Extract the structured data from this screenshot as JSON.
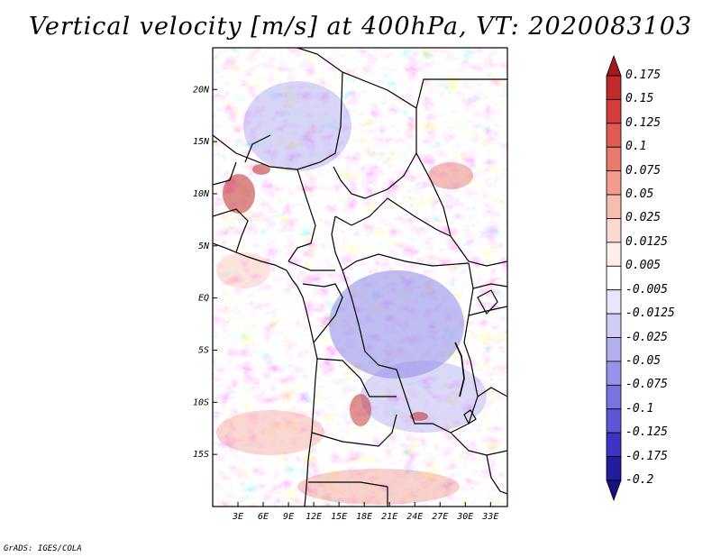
{
  "title": "Vertical velocity [m/s] at 400hPa, VT: 2020083103",
  "credit": "GrADS: IGES/COLA",
  "map": {
    "lon_range": [
      0,
      35
    ],
    "lat_range": [
      -20,
      24
    ],
    "x_ticks": [
      "3E",
      "6E",
      "9E",
      "12E",
      "15E",
      "18E",
      "21E",
      "24E",
      "27E",
      "30E",
      "33E"
    ],
    "x_tick_values": [
      3,
      6,
      9,
      12,
      15,
      18,
      21,
      24,
      27,
      30,
      33
    ],
    "y_ticks": [
      "20N",
      "15N",
      "10N",
      "5N",
      "EQ",
      "5S",
      "10S",
      "15S"
    ],
    "y_tick_values": [
      20,
      15,
      10,
      5,
      0,
      -5,
      -10,
      -15
    ]
  },
  "colorbar": {
    "labels": [
      "0.175",
      "0.15",
      "0.125",
      "0.1",
      "0.075",
      "0.05",
      "0.025",
      "0.0125",
      "0.005",
      "-0.005",
      "-0.0125",
      "-0.025",
      "-0.05",
      "-0.075",
      "-0.1",
      "-0.125",
      "-0.175",
      "-0.2"
    ],
    "colors": [
      "#a11a1e",
      "#c02a2a",
      "#d63c3c",
      "#e25a52",
      "#ea7a6e",
      "#f29b8e",
      "#f7bcb0",
      "#fbd9d0",
      "#fdeeea",
      "#ffffff",
      "#e7e6fb",
      "#cfcdf6",
      "#b3b0f0",
      "#9792ea",
      "#7a74e2",
      "#5c55d6",
      "#3c35c4",
      "#231c9e",
      "#160f80"
    ]
  }
}
